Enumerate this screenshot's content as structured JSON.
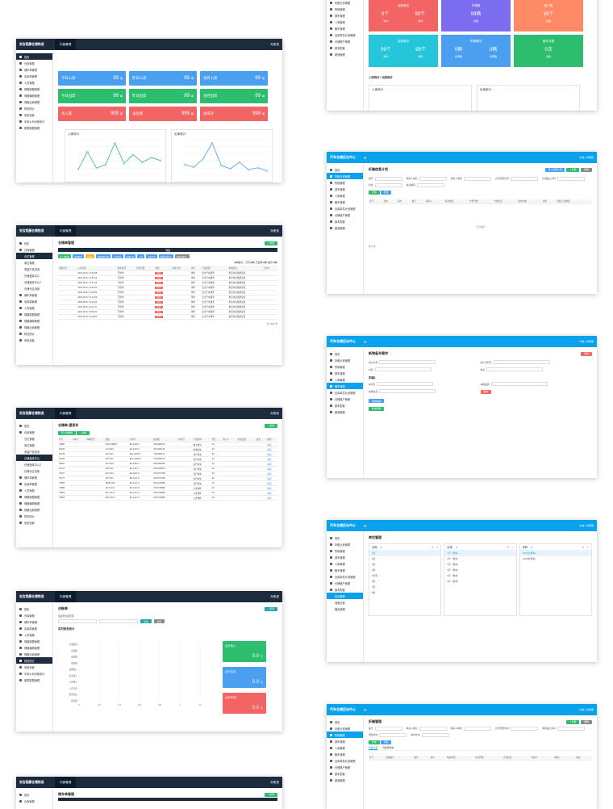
{
  "app": {
    "brand_dark": "安吉铝藤仓储物流",
    "brand_blue": "汽车仓储后台中心",
    "top_tab": "内部管理",
    "user": "孙佬佬",
    "user_blue": "中电 / 孙佬佬",
    "menu_icon": "hamburger-icon"
  },
  "sidebar_dark": {
    "items": [
      "首页",
      "仓库管理",
      "储车单管理",
      "出库单管理",
      "人员管理",
      "规格数据管理",
      "规格编辑管理",
      "规格出纳管理",
      "财务统计",
      "系统设置",
      "半驾公司对帐统计",
      "报表数据管理"
    ],
    "subitems_store": [
      "仓位管理",
      "库位管理",
      "重建产品查询",
      "仓储盘库中心",
      "仓储盘库中心2",
      "仓储仓位设置"
    ]
  },
  "sidebar_blue": {
    "items": [
      "首页",
      "折箱计划管理",
      "所辖管理",
      "提车管理",
      "入库管理",
      "备车管理",
      "出库单员计划管理",
      "仓储账户管理",
      "基本配置",
      "超速管理"
    ],
    "subitems_base": [
      "折位管理",
      "地面位置",
      "路由管理"
    ]
  },
  "dashboard": {
    "stats": [
      {
        "label": "今日入库",
        "value": "99",
        "unit": "辆",
        "color": "#4a9ff0"
      },
      {
        "label": "昨日入库",
        "value": "99",
        "unit": "辆",
        "color": "#4a9ff0"
      },
      {
        "label": "也月入库",
        "value": "99",
        "unit": "辆",
        "color": "#4a9ff0"
      },
      {
        "label": "今日出库",
        "value": "99",
        "unit": "辆",
        "color": "#2dbd6e"
      },
      {
        "label": "昨日出库",
        "value": "99",
        "unit": "辆",
        "color": "#2dbd6e"
      },
      {
        "label": "也月出库",
        "value": "99",
        "unit": "辆",
        "color": "#2dbd6e"
      },
      {
        "label": "总入库",
        "value": "999",
        "unit": "辆",
        "color": "#f36464"
      },
      {
        "label": "总出库",
        "value": "999",
        "unit": "辆",
        "color": "#f36464"
      },
      {
        "label": "总库存",
        "value": "999",
        "unit": "辆",
        "color": "#f36464"
      }
    ],
    "chart_in_title": "入库统计",
    "chart_out_title": "出库统计"
  },
  "chart_data": [
    {
      "type": "line",
      "title": "入库统计",
      "series": [
        {
          "values": [
            10,
            40,
            12,
            18,
            55,
            20,
            35,
            22,
            30,
            25
          ]
        }
      ],
      "color": "#2dbd6e"
    },
    {
      "type": "line",
      "title": "出库统计",
      "series": [
        {
          "values": [
            20,
            15,
            30,
            60,
            18,
            12,
            24,
            10,
            14,
            8
          ]
        }
      ],
      "color": "#4a9ff0"
    }
  ],
  "inventory_page": {
    "title": "仓储单管理",
    "add_label": "+ 新增",
    "filter_label": "筛选",
    "toolbar": [
      "导入新数据",
      "批量删除",
      "导出表",
      "批量数据管理",
      "生成报表",
      "批量修改",
      "上传",
      "下载文件",
      "数据批量导出",
      "数据批量输入"
    ],
    "summary": "车辆统计：已有(0辆)  已出库(0辆)  统计(0辆)",
    "columns": [
      "批量序号",
      "入库时间",
      "到库时间",
      "仓库名称",
      "状态",
      "车架号码",
      "部门",
      "产品名称",
      "车辆信息",
      "订单号"
    ],
    "rows": [
      [
        "2020-08-27 11:35:48",
        "已经单",
        "出库",
        "传单",
        "安吉汽车服务",
        "重铝车身铭牌安装"
      ],
      [
        "2020-08-27 11:35:13",
        "已经单",
        "出库",
        "传单",
        "安吉汽车服务",
        "重铝车身铭牌安装"
      ],
      [
        "2020-08-27 11:27:09",
        "已经单",
        "出库",
        "传单",
        "安吉汽车服务",
        "重铝车身铭牌安装"
      ],
      [
        "2020-08-27 11:26:32",
        "已经单",
        "出库",
        "传单",
        "安吉汽车服务",
        "重铝车身铭牌安装"
      ],
      [
        "2020-08-27 11:15:59",
        "已经单",
        "出库",
        "传单",
        "安吉汽车服务",
        "重铝车身铭牌安装"
      ],
      [
        "2020-08-27 11:14:22",
        "已经单",
        "出库",
        "传单",
        "安吉汽车服务",
        "重铝车身铭牌安装"
      ],
      [
        "2020-08-27 11:13:10",
        "已经单",
        "出库",
        "传单",
        "安吉汽车服务",
        "重铝车身铭牌安装"
      ],
      [
        "2020-08-27 11:02:11",
        "已经单",
        "出库",
        "传单",
        "安吉汽车服务",
        "重铝车身铭牌安装"
      ],
      [
        "2020-08-27 10:59:02",
        "已经单",
        "出库",
        "传单",
        "安吉汽车服务",
        "重铝车身铭牌安装"
      ],
      [
        "2020-08-27 10:48:55",
        "已经单",
        "出库",
        "传单",
        "安吉汽车服务",
        "重铝车身铭牌安装"
      ]
    ],
    "pagination": "共 1300 条"
  },
  "outbound_page": {
    "title": "仓储单-提货车",
    "columns": [
      "序号",
      "id车号",
      "车辆型号",
      "颜色",
      "订单号",
      "发动机",
      "车架号",
      "产品名称",
      "部门",
      "到入人",
      "生效日期",
      "备注",
      "操作"
    ],
    "rows": [
      [
        "13884",
        "2014-18634",
        "EF-0110-2",
        "2021081140",
        "电卡驱动",
        "2A"
      ],
      [
        "18019",
        "CF-0451",
        "EF-0110-3",
        "2021081133",
        "重载车架",
        "3A"
      ],
      [
        "46139",
        "EF1-011",
        "EF1-0130-6",
        "7201081113",
        "自行车架",
        "2A"
      ],
      [
        "46193",
        "EF1-011",
        "EF1-0130-8",
        "7201081113",
        "自行车架",
        "2A"
      ],
      [
        "35991",
        "EF-0121",
        "EF-0150-7",
        "2021081093",
        "自行车架",
        "2A"
      ],
      [
        "34723",
        "EF0-511",
        "EF-0117-1",
        "2021024870",
        "自行车架",
        "3A"
      ],
      [
        "76247",
        "EF7-511",
        "EF-0117-6",
        "1001707038",
        "自行车架",
        "3A"
      ],
      [
        "70177",
        "EF7-511",
        "EF-0117-4",
        "1001707038",
        "自行车架",
        "3A"
      ],
      [
        "79289",
        "EMB-0117",
        "EF-0117-2",
        "2021010283",
        "自行车架",
        "2A"
      ],
      [
        "79883",
        "EF7-0147",
        "EF-0117-8",
        "1001705883",
        "五金零件",
        "2A"
      ],
      [
        "79963",
        "EF7-0147",
        "EF-0117-6",
        "1001705883",
        "五金零件",
        "2A"
      ],
      [
        "79963",
        "EF7-0147",
        "EF-0117-9",
        "1001705883",
        "五金零件",
        "2A"
      ]
    ],
    "operation": "编辑"
  },
  "finance_page": {
    "title": "对账单",
    "date_label": "请选择日期范围",
    "chart_title": "实时财务统计",
    "categories": [
      "仓储费用",
      "运输费",
      "装卸费",
      "保险费",
      "其他收入",
      "出库收入",
      "入库收入",
      "入库支出",
      "装卸支出",
      "租赁费"
    ],
    "boxes": [
      {
        "label": "合计收入",
        "value": "0.0",
        "unit": "元",
        "color": "#2dbd6e"
      },
      {
        "label": "合计支出",
        "value": "0.0",
        "unit": "元",
        "color": "#4a9ff0"
      },
      {
        "label": "合计利润",
        "value": "0.0",
        "unit": "元",
        "color": "#f36464"
      }
    ]
  },
  "blue_dash": {
    "boxes": [
      {
        "label": "全部库位",
        "a": "9个",
        "b": "99个",
        "c1": "库内",
        "c2": "库外",
        "color": "#f36464"
      },
      {
        "label": "车辆数",
        "a": "99辆",
        "c1": "总数",
        "color": "#7b6cf0"
      },
      {
        "label": "客户数",
        "a": "99个",
        "c1": "总数",
        "color": "#ff8a65"
      },
      {
        "label": "空余库位",
        "a": "99个",
        "b": "99个",
        "c1": "库内",
        "c2": "库外",
        "color": "#26c6da"
      },
      {
        "label": "车辆情况",
        "a": "0辆",
        "b": "0辆",
        "c1": "在库数",
        "c2": "出库数",
        "color": "#4a9ff0"
      },
      {
        "label": "备车次数",
        "a": "0次",
        "c1": "总数",
        "color": "#2dbd6e"
      }
    ],
    "section": "入库统计 / 出库统计",
    "in_title": "入库统计",
    "out_title": "出库统计"
  },
  "plan_page": {
    "title": "折箱信息计划",
    "buttons": [
      "导入折箱计划",
      "+ 新增",
      "删除"
    ],
    "fields": [
      "编号",
      "联系人姓名",
      "联系人电话",
      "计划开始时间",
      "计划截止时间",
      "状态",
      "备注编辑"
    ],
    "search": "查询",
    "reset": "重置",
    "columns": [
      "序号",
      "状态",
      "客户",
      "编号",
      "联系人",
      "联系电话",
      "计划开始",
      "计划结束",
      "操作状态",
      "审批",
      "填报人员/数量"
    ],
    "empty": "暂无数据",
    "page_info": "共 0 条"
  },
  "new_vehicle_page": {
    "title": "新增备车需求",
    "back": "返回",
    "fields": [
      "客户名称",
      "客户手机号",
      "时间",
      "地址"
    ],
    "section": "车辆1",
    "vehicle_fields": [
      "车架号",
      "车辆品牌",
      "车辆位置"
    ],
    "delete": "删除",
    "add_vehicle": "添加车辆",
    "submit": "提交需求"
  },
  "location_page": {
    "title": "库位管理",
    "cols": [
      {
        "name": "仓库",
        "items": [
          "1区",
          "2区",
          "3区",
          "4区",
          "5号库",
          "6区",
          "7区",
          "8区"
        ]
      },
      {
        "name": "区域",
        "items": [
          "1号（整车）",
          "2号（整车）",
          "3号（整车）",
          "4号（整车）",
          "5号（整车）",
          "6号（整车）"
        ]
      },
      {
        "name": "号码",
        "items": [
          "1001位(整车)",
          "1002位(整车)"
        ]
      }
    ]
  },
  "fold_page": {
    "title": "折箱管理",
    "fields": [
      "编号",
      "联系人姓名",
      "联系人电话",
      "计划开始时间",
      "审核截止时间",
      "审核状态",
      "操作状态"
    ],
    "tabs": [
      "折箱计划",
      "待出库状态"
    ],
    "columns": [
      "序号",
      "折箱编号",
      "编号",
      "客户",
      "联系电话",
      "计划开始",
      "计划结束",
      "联系人",
      "审批人",
      "备注"
    ]
  },
  "last_page": {
    "title": "储车单管理"
  }
}
